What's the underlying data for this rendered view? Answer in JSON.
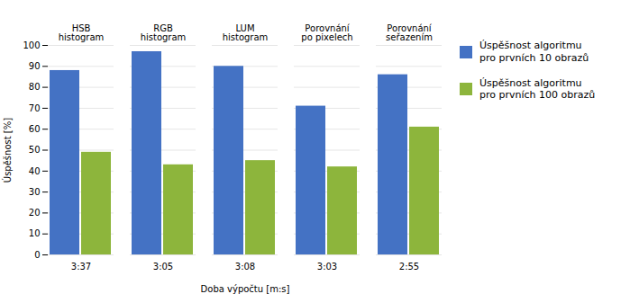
{
  "chart_data": {
    "type": "bar",
    "categories": [
      "3:37",
      "3:05",
      "3:08",
      "3:03",
      "2:55"
    ],
    "series": [
      {
        "name": "Úspěšnost algoritmu\npro prvních 10 obrazů",
        "color": "#4472C4",
        "values": [
          88,
          97,
          90,
          71,
          86
        ]
      },
      {
        "name": "Úspěšnost algoritmu\npro prvních 100 obrazů",
        "color": "#8DB53C",
        "values": [
          49,
          43,
          45,
          42,
          61
        ]
      }
    ],
    "annotations": [
      {
        "x": "3:37",
        "text": "HSB\nhistogram"
      },
      {
        "x": "3:05",
        "text": "RGB\nhistogram"
      },
      {
        "x": "3:08",
        "text": "LUM\nhistogram"
      },
      {
        "x": "3:03",
        "text": "Porovnání\npo pixelech"
      },
      {
        "x": "2:55",
        "text": "Porovnání\nseřazením"
      }
    ],
    "xlabel": "Doba výpočtu [m:s]",
    "ylabel": "Úspěšnost [%]",
    "ylim": [
      0,
      100
    ],
    "yticks": [
      0,
      10,
      20,
      30,
      40,
      50,
      60,
      70,
      80,
      90,
      100
    ],
    "grid": true,
    "legend": "right"
  }
}
